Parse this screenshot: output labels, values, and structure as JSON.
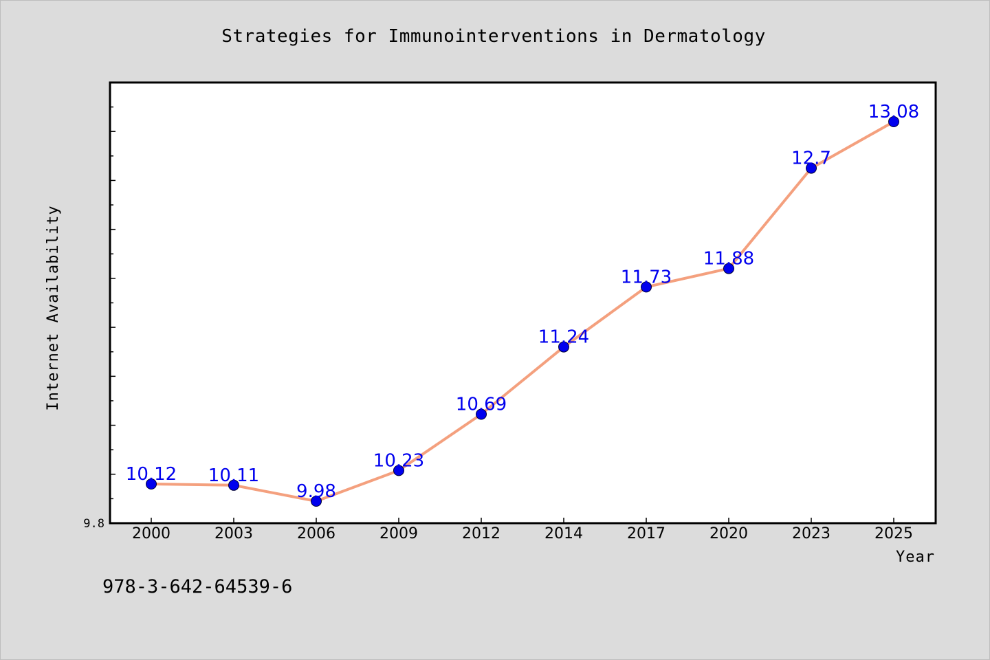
{
  "chart_data": {
    "type": "line",
    "title": "Strategies for Immunointerventions in Dermatology",
    "xlabel": "Year",
    "ylabel": "Internet Availability",
    "categories": [
      "2000",
      "2003",
      "2006",
      "2009",
      "2012",
      "2014",
      "2017",
      "2020",
      "2023",
      "2025"
    ],
    "values": [
      10.12,
      10.11,
      9.98,
      10.23,
      10.69,
      11.24,
      11.73,
      11.88,
      12.7,
      13.08
    ],
    "data_labels": [
      "10.12",
      "10.11",
      "9.98",
      "10.23",
      "10.69",
      "11.24",
      "11.73",
      "11.88",
      "12.7",
      "13.08"
    ],
    "ytick_labels": [
      "9.8"
    ],
    "ylim": [
      9.8,
      13.4
    ],
    "grid": false,
    "legend": "none",
    "colors": {
      "line": "#f4a07e",
      "marker": "#0000ee",
      "data_label": "#0000ee",
      "plot_background": "#ffffff",
      "figure_background": "#dcdcdc"
    }
  },
  "footnote": "978-3-642-64539-6"
}
